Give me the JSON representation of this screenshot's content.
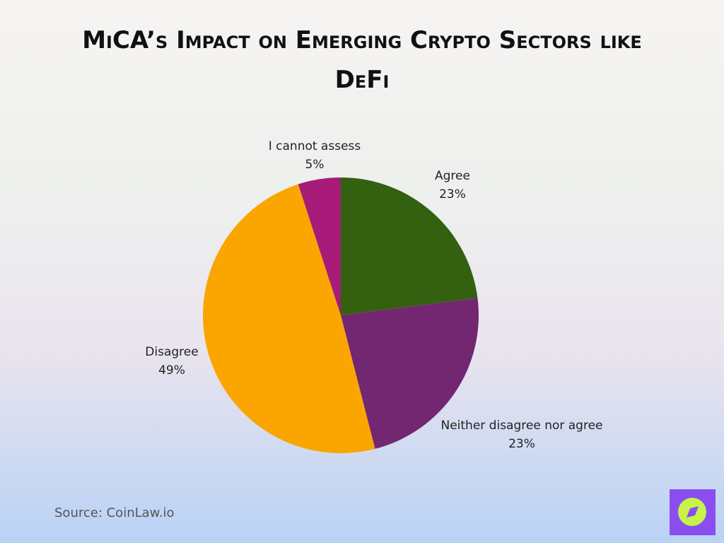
{
  "chart_data": {
    "type": "pie",
    "title": [
      "MiCA’s Impact on Emerging Crypto Sectors like",
      "DeFi"
    ],
    "categories": [
      "Agree",
      "Neither disagree nor agree",
      "Disagree",
      "I cannot assess"
    ],
    "values": [
      23,
      23,
      49,
      5
    ],
    "value_labels": [
      "23%",
      "23%",
      "49%",
      "5%"
    ],
    "colors": [
      "#33610f",
      "#732771",
      "#fba500",
      "#a81b78"
    ],
    "source": "Source: CoinLaw.io"
  }
}
